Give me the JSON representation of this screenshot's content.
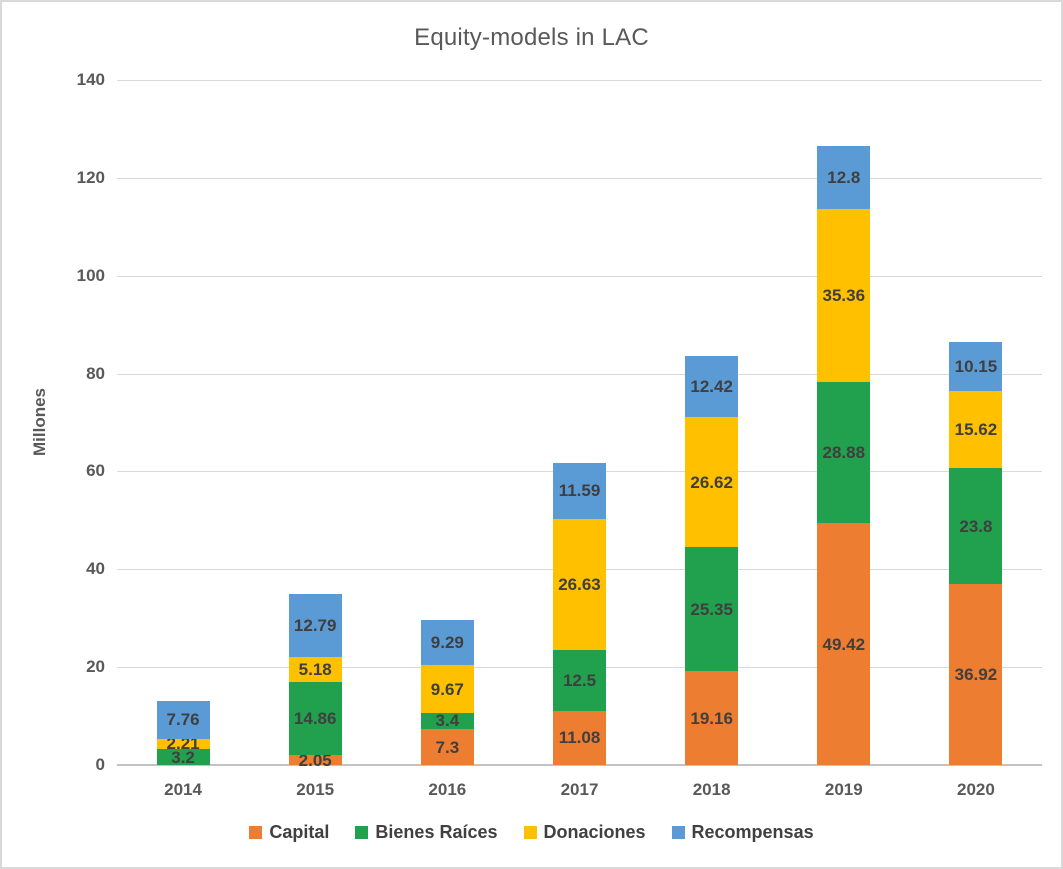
{
  "chart_data": {
    "type": "bar",
    "stacked": true,
    "title": "Equity-models in LAC",
    "xlabel": "",
    "ylabel": "Millones",
    "categories": [
      "2014",
      "2015",
      "2016",
      "2017",
      "2018",
      "2019",
      "2020"
    ],
    "series": [
      {
        "name": "Capital",
        "color": "#ED7D31",
        "values": [
          0,
          2.05,
          7.3,
          11.08,
          19.16,
          49.42,
          36.92
        ]
      },
      {
        "name": "Bienes Raíces",
        "color": "#21A04D",
        "values": [
          3.2,
          14.86,
          3.4,
          12.5,
          25.35,
          28.88,
          23.8
        ]
      },
      {
        "name": "Donaciones",
        "color": "#FFC000",
        "values": [
          2.21,
          5.18,
          9.67,
          26.63,
          26.62,
          35.36,
          15.62
        ]
      },
      {
        "name": "Recompensas",
        "color": "#5B9BD5",
        "values": [
          7.76,
          12.79,
          9.29,
          11.59,
          12.42,
          12.8,
          10.15
        ]
      }
    ],
    "ylim": [
      0,
      140
    ],
    "yticks": [
      0,
      20,
      40,
      60,
      80,
      100,
      120,
      140
    ],
    "grid": true,
    "data_labels": true,
    "legend_position": "bottom"
  },
  "colors": {
    "title_text": "#595959",
    "axis_text": "#595959",
    "data_label_text": "#3F3F3F",
    "gridline": "#D9D9D9",
    "axis_line": "#C3C3C3",
    "background": "#FFFFFF",
    "frame_border": "#D9D9D9"
  }
}
